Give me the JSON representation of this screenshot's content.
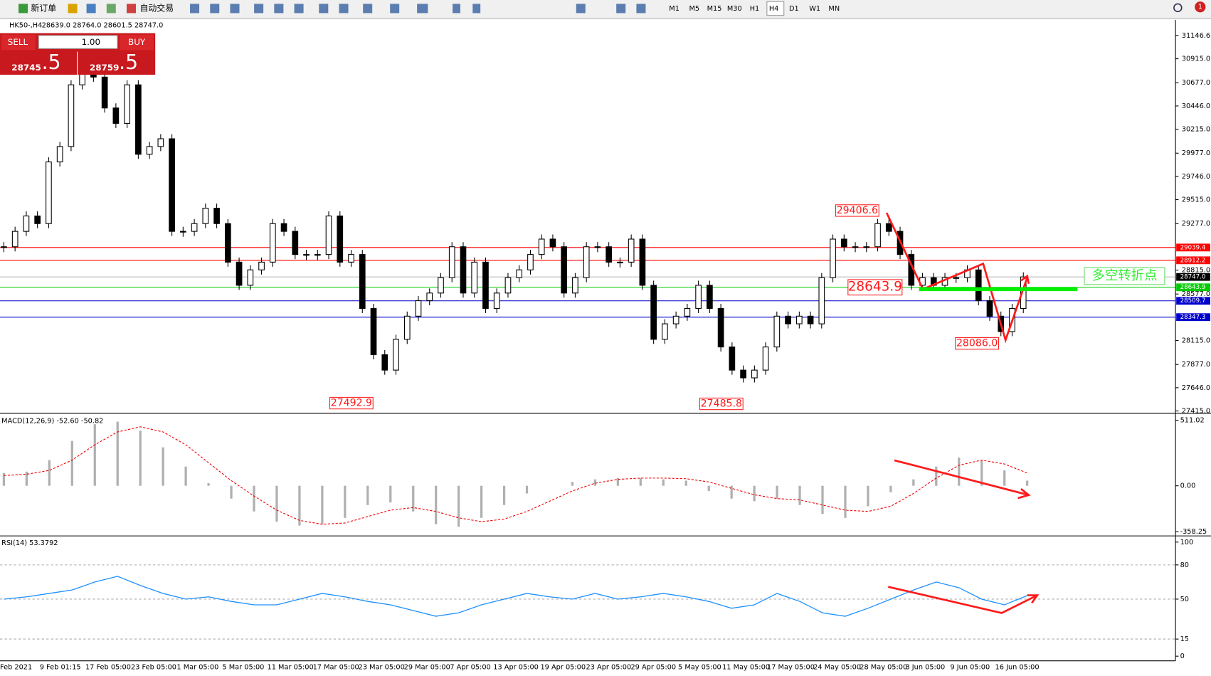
{
  "toolbar": {
    "new_order": "新订单",
    "auto_trade": "自动交易",
    "timeframes": [
      "M1",
      "M5",
      "M15",
      "M30",
      "H1",
      "H4",
      "D1",
      "W1",
      "MN"
    ],
    "notifications": "1"
  },
  "trade_panel": {
    "sell": "SELL",
    "buy": "BUY",
    "lots": "1.00",
    "bid_main": "28745",
    "bid_frac": ".5",
    "ask_main": "28759",
    "ask_frac": ".5"
  },
  "chart": {
    "symbol": "HK50-,H4",
    "ohlc": "28639.0 28764.0 28601.5 28747.0",
    "price_ticks": [
      31146.6,
      {
        "value": 30915,
        "label": "30915.0"
      },
      {
        "value": 30677,
        "label": "30677.0"
      },
      {
        "value": 30446,
        "label": "30446.0"
      },
      {
        "value": 30215,
        "label": "30215.0"
      },
      {
        "value": 29977,
        "label": "29977.0"
      },
      {
        "value": 29746,
        "label": "29746.0"
      },
      {
        "value": 29515,
        "label": "29515.0"
      },
      {
        "value": 29277,
        "label": "29277.0"
      },
      {
        "value": 28815,
        "label": "28815.0"
      },
      {
        "value": 28577,
        "label": "28577.0"
      },
      {
        "value": 28115,
        "label": "28115.0"
      },
      {
        "value": 27877,
        "label": "27877.0"
      },
      {
        "value": 27646,
        "label": "27646.0"
      },
      {
        "value": 27415,
        "label": "27415.0"
      }
    ],
    "closes": [
      29047,
      29200,
      29353,
      29277,
      29890,
      30043,
      30656,
      30810,
      30733,
      30426,
      30273,
      30656,
      29966,
      30043,
      30120,
      29200,
      29200,
      29277,
      29430,
      29277,
      28894,
      28664,
      28817,
      28894,
      29277,
      29200,
      28970,
      28970,
      28970,
      29353,
      28894,
      28970,
      28434,
      27974,
      27821,
      28127,
      28357,
      28511,
      28587,
      28740,
      29047,
      28587,
      28894,
      28434,
      28587,
      28740,
      28817,
      28970,
      29123,
      29047,
      28587,
      28740,
      29047,
      29047,
      28894,
      28894,
      29123,
      28664,
      28127,
      28281,
      28357,
      28434,
      28664,
      28434,
      28051,
      27821,
      27744,
      27821,
      28051,
      28357,
      28281,
      28357,
      28281,
      28740,
      29123,
      29047,
      29047,
      29047,
      29277,
      29200,
      28970,
      28664,
      28740,
      28664,
      28740,
      28740,
      28817,
      28511,
      28357,
      28204,
      28434,
      28747
    ],
    "current_price": {
      "value": 28747,
      "label": "28747.0"
    },
    "levels": [
      {
        "value": 29039.4,
        "color": "#ff0000"
      },
      {
        "value": 28912.2,
        "color": "#ff0000"
      },
      {
        "value": 28643.9,
        "color": "#00cc00"
      },
      {
        "value": 28509.7,
        "color": "#0000cc"
      },
      {
        "value": 28347.3,
        "color": "#0000cc"
      }
    ],
    "annotations": [
      {
        "value": 29406.6
      },
      {
        "value": 28643.9
      },
      {
        "value": 28086,
        "label": "28086.0"
      },
      {
        "value": 27492.9
      },
      {
        "value": 27485.8
      }
    ],
    "note": "多空转折点",
    "time_labels": [
      "Feb 2021",
      "9 Feb 01:15",
      "17 Feb 05:00",
      "23 Feb 05:00",
      "1 Mar 05:00",
      "5 Mar 05:00",
      "11 Mar 05:00",
      "17 Mar 05:00",
      "23 Mar 05:00",
      "29 Mar 05:00",
      "7 Apr 05:00",
      "13 Apr 05:00",
      "19 Apr 05:00",
      "23 Apr 05:00",
      "29 Apr 05:00",
      "5 May 05:00",
      "11 May 05:00",
      "17 May 05:00",
      "24 May 05:00",
      "28 May 05:00",
      "3 Jun 05:00",
      "9 Jun 05:00",
      "16 Jun 05:00"
    ]
  },
  "macd": {
    "label": "MACD(12,26,9) -52.60 -50.82",
    "ticks": [
      {
        "value": 511.02,
        "label": "511.02"
      },
      {
        "value": 0,
        "label": "0.00"
      },
      {
        "value": -358.25,
        "label": "-358.25"
      }
    ],
    "histogram": [
      100,
      110,
      200,
      350,
      480,
      500,
      430,
      300,
      150,
      20,
      -100,
      -200,
      -280,
      -310,
      -300,
      -250,
      -150,
      -130,
      -200,
      -300,
      -320,
      -250,
      -150,
      -60,
      0,
      30,
      50,
      60,
      60,
      50,
      40,
      -40,
      -100,
      -120,
      -100,
      -150,
      -220,
      -250,
      -160,
      -50,
      50,
      150,
      220,
      200,
      120,
      40
    ],
    "signal": [
      80,
      90,
      120,
      200,
      320,
      420,
      460,
      420,
      320,
      180,
      40,
      -80,
      -190,
      -270,
      -300,
      -290,
      -240,
      -190,
      -170,
      -200,
      -250,
      -280,
      -260,
      -200,
      -120,
      -40,
      20,
      50,
      60,
      60,
      55,
      30,
      -20,
      -70,
      -100,
      -110,
      -150,
      -190,
      -200,
      -160,
      -60,
      60,
      160,
      200,
      170,
      100
    ]
  },
  "rsi": {
    "label": "RSI(14) 53.3792",
    "ticks": [
      100,
      80,
      50,
      15,
      0
    ],
    "values": [
      50,
      52,
      55,
      58,
      65,
      70,
      62,
      55,
      50,
      52,
      48,
      45,
      45,
      50,
      55,
      52,
      48,
      45,
      40,
      35,
      38,
      45,
      50,
      55,
      52,
      50,
      55,
      50,
      52,
      55,
      52,
      48,
      42,
      45,
      55,
      48,
      38,
      35,
      42,
      50,
      58,
      65,
      60,
      50,
      45,
      53
    ]
  }
}
